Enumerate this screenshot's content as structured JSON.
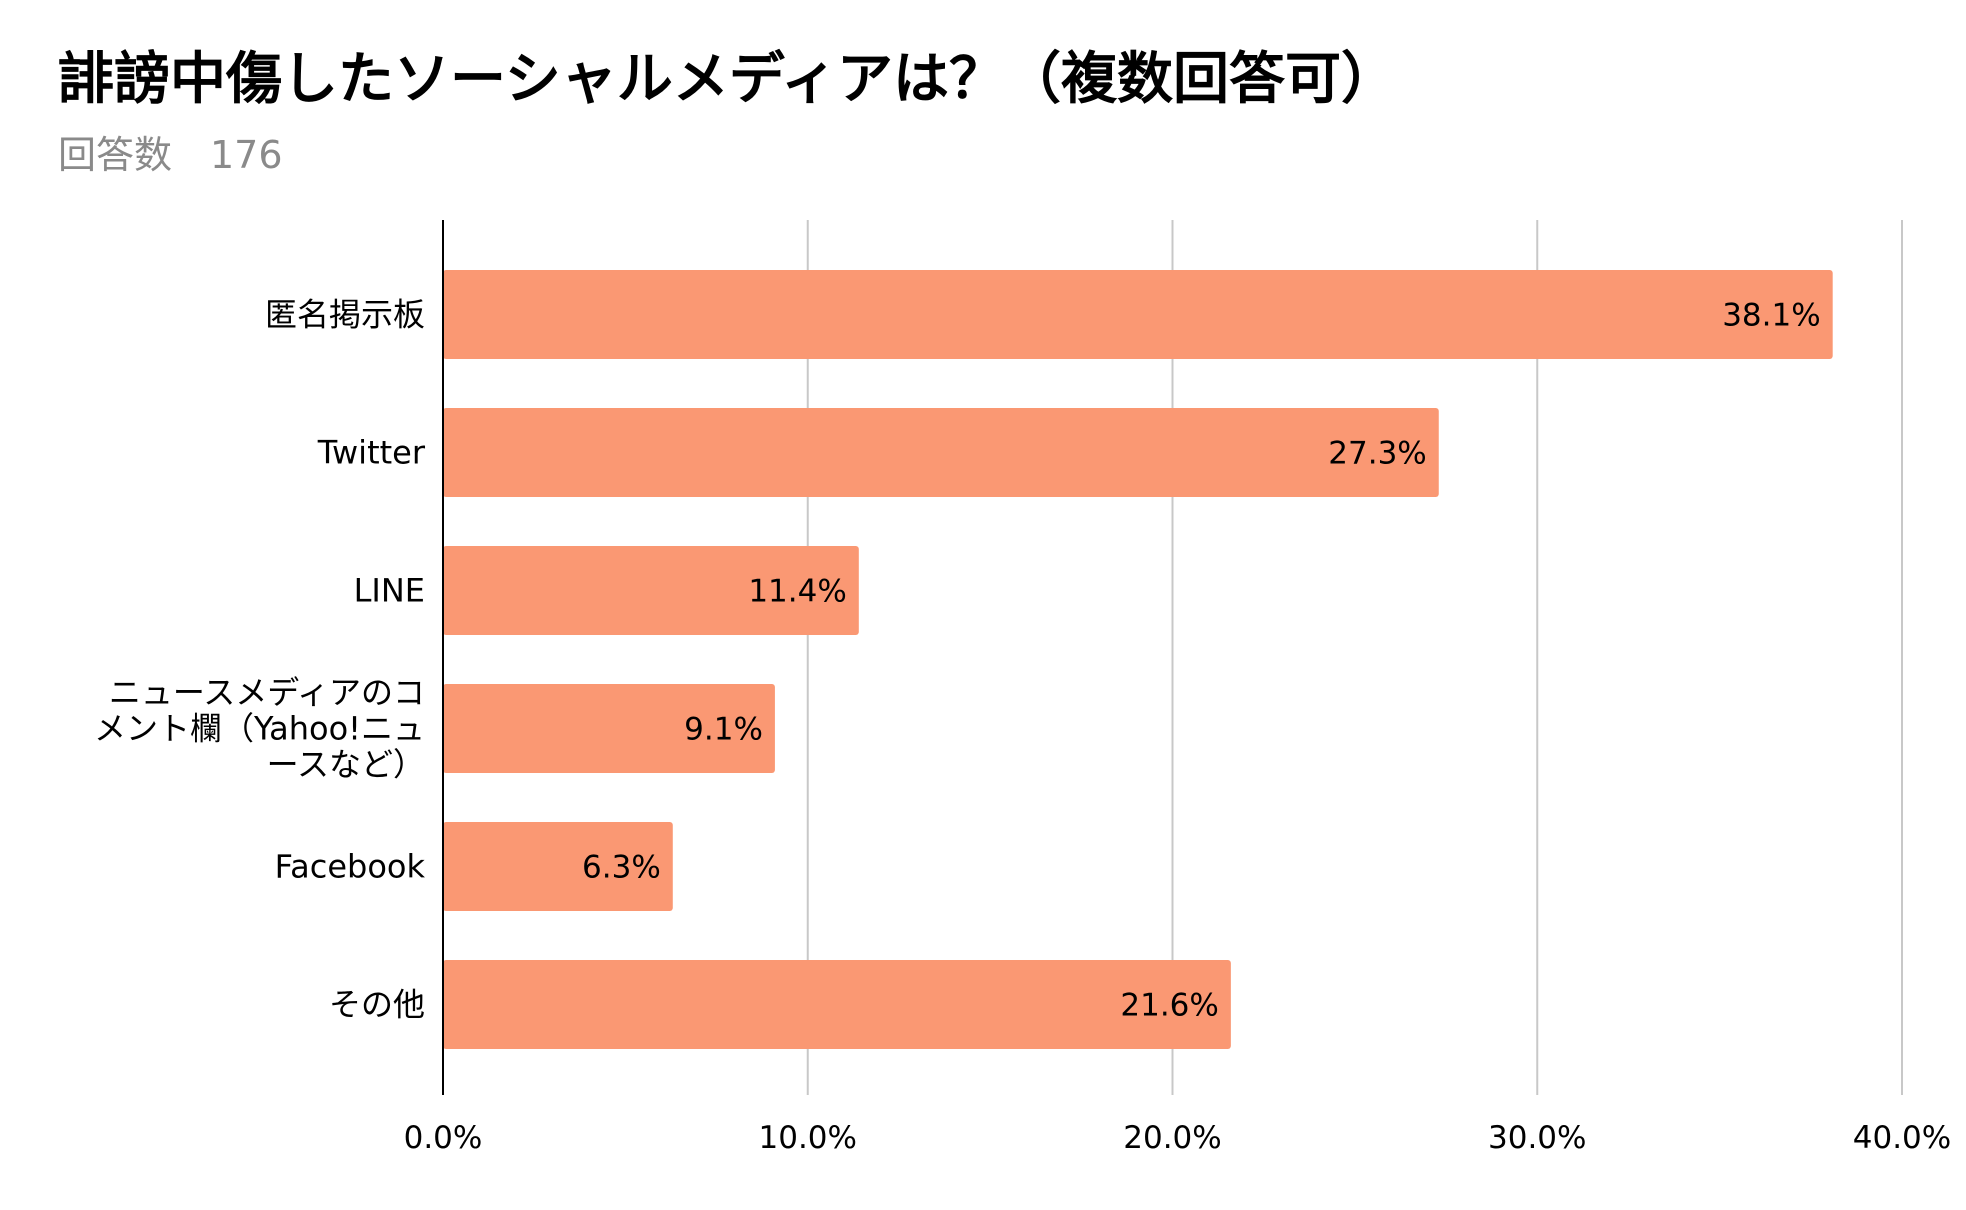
{
  "chart_data": {
    "type": "bar",
    "orientation": "horizontal",
    "title": "誹謗中傷したソーシャルメディアは？（複数回答可）",
    "subtitle": "回答数　176",
    "categories": [
      "匿名掲示板",
      "Twitter",
      "LINE",
      "ニュースメディアのコメント欄（Yahoo!ニュースなど）",
      "Facebook",
      "その他"
    ],
    "category_label_lines": [
      [
        "匿名掲示板"
      ],
      [
        "Twitter"
      ],
      [
        "LINE"
      ],
      [
        "ニュースメディアのコ",
        "メント欄（Yahoo!ニュ",
        "ースなど）"
      ],
      [
        "Facebook"
      ],
      [
        "その他"
      ]
    ],
    "values": [
      38.1,
      27.3,
      11.4,
      9.1,
      6.3,
      21.6
    ],
    "value_labels": [
      "38.1%",
      "27.3%",
      "11.4%",
      "9.1%",
      "6.3%",
      "21.6%"
    ],
    "xlim": [
      0,
      40
    ],
    "xticks": [
      0,
      10,
      20,
      30,
      40
    ],
    "xtick_labels": [
      "0.0%",
      "10.0%",
      "20.0%",
      "30.0%",
      "40.0%"
    ],
    "xlabel": "",
    "ylabel": "",
    "grid": true,
    "legend": "none",
    "colors": {
      "bar": "#FA9873",
      "grid": "#c8c8c8",
      "axis": "#000000",
      "text": "#000000",
      "subtitle": "#8a8a8a"
    }
  }
}
